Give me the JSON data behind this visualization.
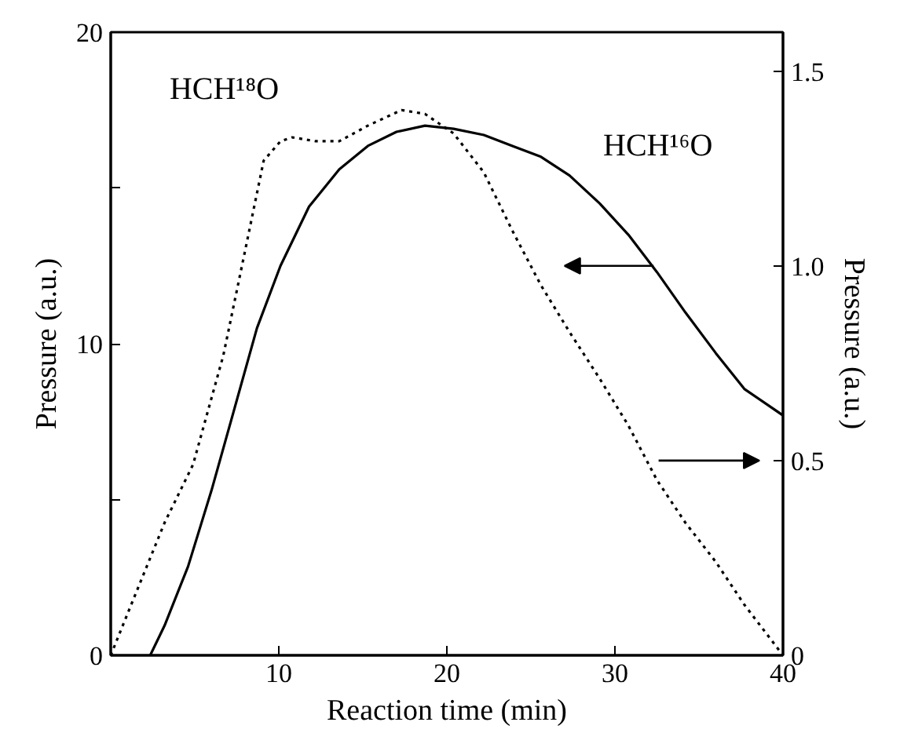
{
  "chart_data": {
    "type": "line",
    "xlabel": "Reaction time (min)",
    "ylabel": "Pressure (a.u.)",
    "y2label": "Pressure (a.u.)",
    "xlim": [
      0,
      40
    ],
    "xticks": [
      10,
      20,
      30,
      40
    ],
    "ylim": [
      0,
      20
    ],
    "yticks": [
      0,
      {
        "value": 5,
        "label": null
      },
      10,
      {
        "value": 15,
        "label": null
      },
      20
    ],
    "y2lim": [
      0,
      1.6
    ],
    "y2ticks": [
      0,
      0.5,
      {
        "value": 1.0,
        "label": "1.0"
      },
      1.5
    ],
    "grid": false,
    "legend": false,
    "series": [
      {
        "name": "HCH¹⁶O",
        "color": "#000000",
        "line_style": "solid",
        "x": [
          2.35,
          3.2,
          4.6,
          6.0,
          7.3,
          8.7,
          10.1,
          11.8,
          13.6,
          15.3,
          17.0,
          18.7,
          20.4,
          22.2,
          23.9,
          25.6,
          27.3,
          29.1,
          30.8,
          32.5,
          34.2,
          36.0,
          37.7,
          40
        ],
        "values": [
          0,
          0.95,
          2.85,
          5.3,
          7.8,
          10.5,
          12.5,
          14.4,
          15.6,
          16.35,
          16.8,
          17.0,
          16.9,
          16.7,
          16.35,
          16.0,
          15.4,
          14.5,
          13.5,
          12.3,
          11.0,
          9.7,
          8.55,
          7.7
        ]
      },
      {
        "name": "HCH¹⁸O",
        "color": "#000000",
        "line_style": "dotted",
        "axis": "y2",
        "x": [
          0,
          1.5,
          3.2,
          4.9,
          6.7,
          8.0,
          9.1,
          10.1,
          10.8,
          12.2,
          13.6,
          15.3,
          17.3,
          18.7,
          20.4,
          22.2,
          23.9,
          25.6,
          27.3,
          29.1,
          30.8,
          32.5,
          34.2,
          36.0,
          37.7,
          40
        ],
        "values": [
          0,
          0.16,
          0.34,
          0.49,
          0.77,
          1.04,
          1.27,
          1.32,
          1.33,
          1.32,
          1.32,
          1.36,
          1.4,
          1.39,
          1.34,
          1.24,
          1.09,
          0.95,
          0.83,
          0.71,
          0.59,
          0.45,
          0.34,
          0.24,
          0.13,
          0
        ]
      }
    ]
  }
}
